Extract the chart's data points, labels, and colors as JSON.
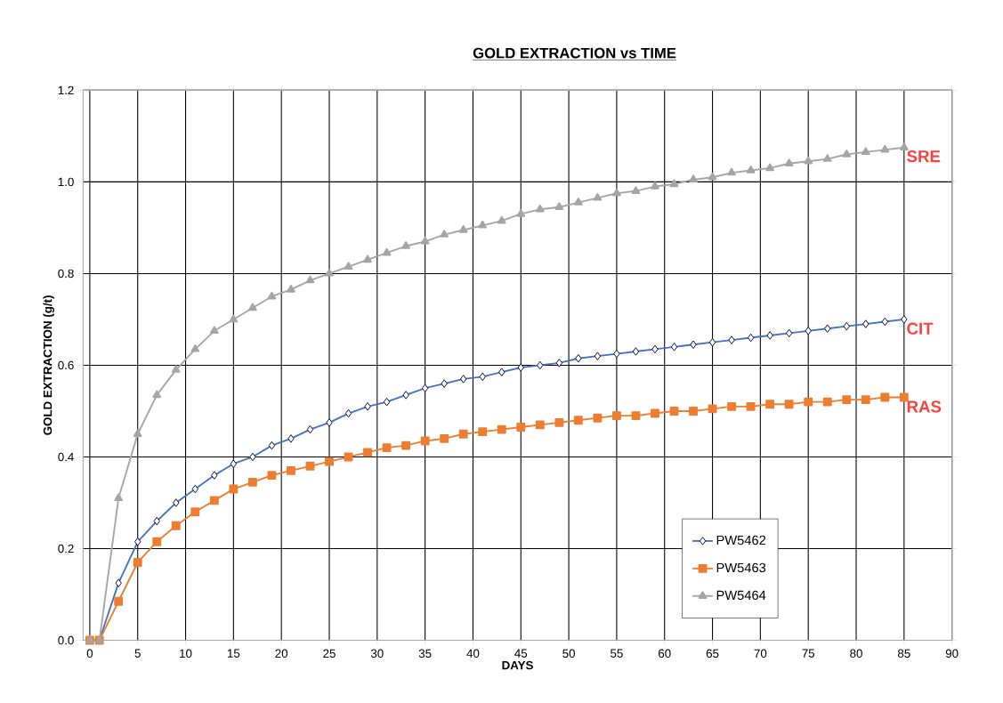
{
  "chart_data": {
    "type": "line",
    "title": "GOLD EXTRACTION vs TIME",
    "xlabel": "DAYS",
    "ylabel": "GOLD EXTRACTION (g/t)",
    "x": [
      0,
      1,
      3,
      5,
      7,
      9,
      11,
      13,
      15,
      17,
      19,
      21,
      23,
      25,
      27,
      29,
      31,
      33,
      35,
      37,
      39,
      41,
      43,
      45,
      47,
      49,
      51,
      53,
      55,
      57,
      59,
      61,
      63,
      65,
      67,
      69,
      71,
      73,
      75,
      77,
      79,
      81,
      83,
      85
    ],
    "series": [
      {
        "name": "PW5462",
        "color": "#4472c4",
        "marker": "diamond",
        "values": [
          0,
          0,
          0.125,
          0.215,
          0.26,
          0.3,
          0.33,
          0.36,
          0.385,
          0.4,
          0.425,
          0.44,
          0.46,
          0.475,
          0.495,
          0.51,
          0.52,
          0.535,
          0.55,
          0.56,
          0.57,
          0.575,
          0.585,
          0.595,
          0.6,
          0.605,
          0.615,
          0.62,
          0.625,
          0.63,
          0.635,
          0.64,
          0.645,
          0.65,
          0.655,
          0.66,
          0.665,
          0.67,
          0.675,
          0.68,
          0.685,
          0.69,
          0.695,
          0.7
        ]
      },
      {
        "name": "PW5463",
        "color": "#ed7d31",
        "marker": "square",
        "values": [
          0,
          0,
          0.085,
          0.17,
          0.215,
          0.25,
          0.28,
          0.305,
          0.33,
          0.345,
          0.36,
          0.37,
          0.38,
          0.39,
          0.4,
          0.41,
          0.42,
          0.425,
          0.435,
          0.44,
          0.45,
          0.455,
          0.46,
          0.465,
          0.47,
          0.475,
          0.48,
          0.485,
          0.49,
          0.49,
          0.495,
          0.5,
          0.5,
          0.505,
          0.51,
          0.51,
          0.515,
          0.515,
          0.52,
          0.52,
          0.525,
          0.525,
          0.53,
          0.53
        ]
      },
      {
        "name": "PW5464",
        "color": "#a5a5a5",
        "marker": "triangle",
        "values": [
          0,
          0,
          0.31,
          0.45,
          0.535,
          0.59,
          0.635,
          0.675,
          0.7,
          0.725,
          0.75,
          0.765,
          0.785,
          0.8,
          0.815,
          0.83,
          0.845,
          0.86,
          0.87,
          0.885,
          0.895,
          0.905,
          0.915,
          0.93,
          0.94,
          0.945,
          0.955,
          0.965,
          0.975,
          0.98,
          0.99,
          0.995,
          1.005,
          1.01,
          1.02,
          1.025,
          1.03,
          1.04,
          1.045,
          1.05,
          1.06,
          1.065,
          1.07,
          1.075
        ]
      }
    ],
    "annotations": [
      "SRE",
      "CIT",
      "RAS"
    ],
    "xlim": [
      -0.7,
      90
    ],
    "ylim": [
      0,
      1.2
    ],
    "xticks": [
      0,
      5,
      10,
      15,
      20,
      25,
      30,
      35,
      40,
      45,
      50,
      55,
      60,
      65,
      70,
      75,
      80,
      85,
      90
    ],
    "yticks": [
      {
        "value": 0,
        "label": "0.0"
      },
      {
        "value": 0.2,
        "label": "0.2"
      },
      {
        "value": 0.4,
        "label": "0.4"
      },
      {
        "value": 0.6,
        "label": "0.6"
      },
      {
        "value": 0.8,
        "label": "0.8"
      },
      {
        "value": 1.0,
        "label": "1.0"
      },
      {
        "value": 1.2,
        "label": "1.2"
      }
    ],
    "grid": true,
    "legend": "bottom right",
    "line_style": "solid"
  }
}
